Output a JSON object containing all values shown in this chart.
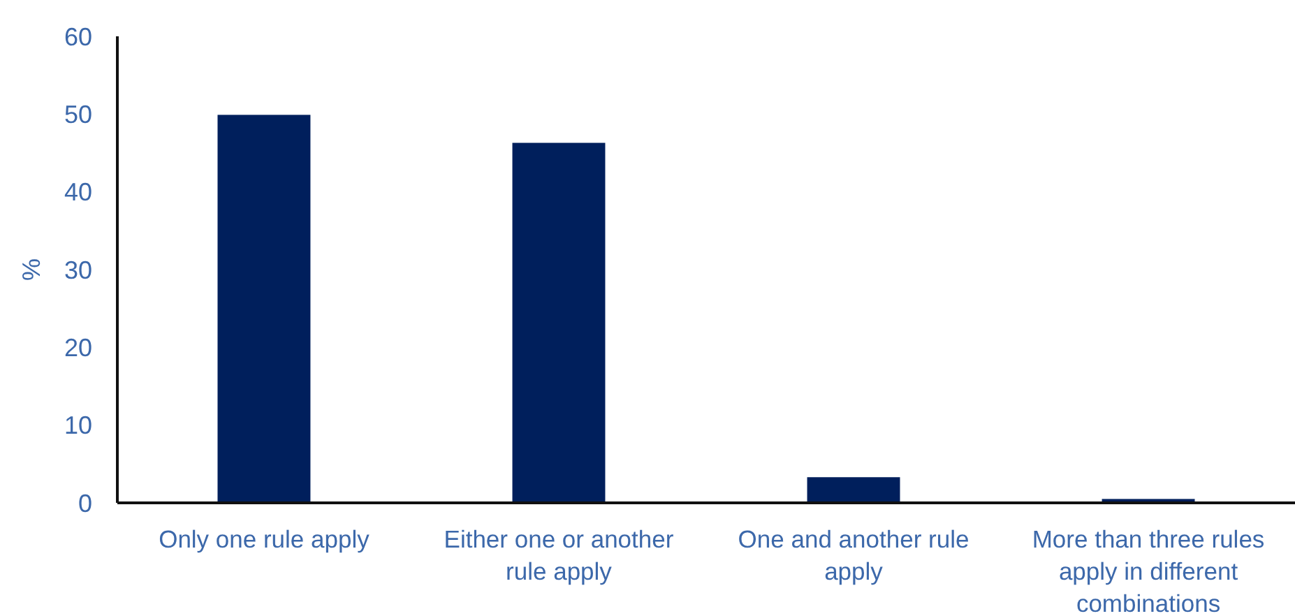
{
  "chart_data": {
    "type": "bar",
    "ylabel": "%",
    "categories": [
      "Only one rule apply",
      "Either one or another rule apply",
      "One and another rule apply",
      "More than three rules apply in different combinations"
    ],
    "values": [
      49.9,
      46.3,
      3.3,
      0.5
    ],
    "color": "#001f5c",
    "ylim": [
      0,
      60
    ],
    "yticks": [
      0,
      10,
      20,
      30,
      40,
      50,
      60
    ],
    "grid": false
  }
}
